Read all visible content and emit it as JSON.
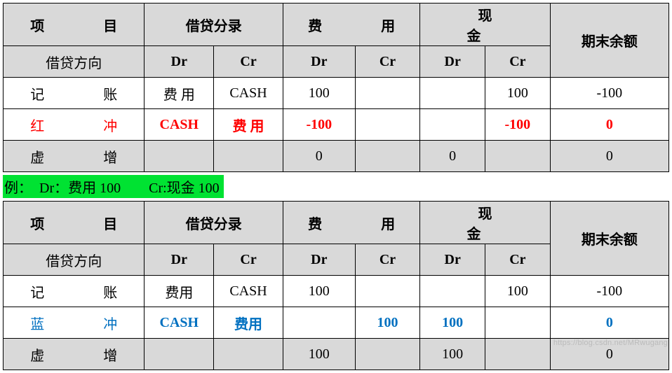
{
  "headers": {
    "col1_top": "项　目",
    "col1_sub": "借贷方向",
    "col23_top": "借贷分录",
    "col45_top": "费　用",
    "col67_top": "现　金",
    "dr": "Dr",
    "cr": "Cr",
    "col8": "期末余额"
  },
  "table1": {
    "rows": [
      {
        "name": "记　账",
        "class": "",
        "entry_dr": "费 用",
        "entry_cr": "CASH",
        "fy_dr": "100",
        "fy_cr": "",
        "xj_dr": "",
        "xj_cr": "100",
        "bal": "-100",
        "row_bg": ""
      },
      {
        "name": "红　冲",
        "class": "red",
        "entry_dr": "CASH",
        "entry_cr": "费 用",
        "fy_dr": "-100",
        "fy_cr": "",
        "xj_dr": "",
        "xj_cr": "-100",
        "bal": "0",
        "row_bg": ""
      },
      {
        "name": "虚　增",
        "class": "",
        "entry_dr": "",
        "entry_cr": "",
        "fy_dr": "0",
        "fy_cr": "",
        "xj_dr": "0",
        "xj_cr": "",
        "bal": "0",
        "row_bg": "grey"
      }
    ]
  },
  "example_line": "例：　Dr：费用 100　　Cr:现金 100",
  "table2": {
    "rows": [
      {
        "name": "记　账",
        "class": "",
        "entry_dr": "费用",
        "entry_cr": "CASH",
        "fy_dr": "100",
        "fy_cr": "",
        "xj_dr": "",
        "xj_cr": "100",
        "bal": "-100",
        "row_bg": ""
      },
      {
        "name": "蓝　冲",
        "class": "blue",
        "entry_dr": "CASH",
        "entry_cr": "费用",
        "fy_dr": "",
        "fy_cr": "100",
        "xj_dr": "100",
        "xj_cr": "",
        "bal": "0",
        "row_bg": ""
      },
      {
        "name": "虚　增",
        "class": "",
        "entry_dr": "",
        "entry_cr": "",
        "fy_dr": "100",
        "fy_cr": "",
        "xj_dr": "100",
        "xj_cr": "",
        "bal": "0",
        "row_bg": "grey"
      }
    ]
  },
  "watermark": "https://blog.csdn.net/MRwugang",
  "colors": {
    "header_bg": "#d9d9d9",
    "red": "#ff0000",
    "blue": "#0070c0",
    "highlight": "#00e232",
    "border": "#000000",
    "background": "#ffffff"
  }
}
